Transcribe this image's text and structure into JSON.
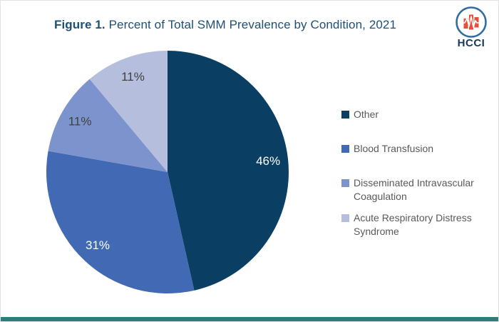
{
  "header": {
    "title_prefix": "Figure 1.",
    "title_rest": " Percent of Total SMM Prevalence by Condition, 2021",
    "logo_text": "HCCI"
  },
  "chart_data": {
    "type": "pie",
    "title": "Percent of Total SMM Prevalence by Condition, 2021",
    "start_angle_deg": 0,
    "direction": "clockwise",
    "legend_position": "right",
    "slices": [
      {
        "label": "Other",
        "value": 46,
        "display": "46%",
        "color": "#0a3e63",
        "label_color": "#ffffff"
      },
      {
        "label": "Blood Transfusion",
        "value": 31,
        "display": "31%",
        "color": "#4269b4",
        "label_color": "#ffffff"
      },
      {
        "label": "Disseminated Intravascular Coagulation",
        "value": 11,
        "display": "11%",
        "color": "#7d93cd",
        "label_color": "#404040"
      },
      {
        "label": "Acute Respiratory Distress Syndrome",
        "value": 11,
        "display": "11%",
        "color": "#b6bedd",
        "label_color": "#404040"
      }
    ]
  },
  "colors": {
    "title": "#1d5077",
    "legend_text": "#595959",
    "footer_bar": "#2e7d7a",
    "logo_ring": "#2e6da4",
    "logo_bars": "#e84e3c",
    "logo_text": "#14395c"
  }
}
